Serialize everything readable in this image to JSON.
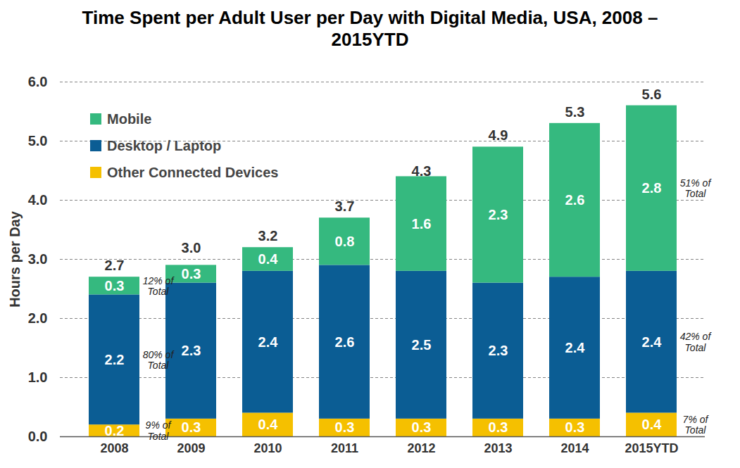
{
  "chart_data": {
    "type": "bar",
    "title": "Time Spent per Adult User per Day with Digital Media, USA, 2008 – 2015YTD",
    "y_label": "Hours per Day",
    "categories": [
      "2008",
      "2009",
      "2010",
      "2011",
      "2012",
      "2013",
      "2014",
      "2015YTD"
    ],
    "series": [
      {
        "name": "Other Connected Devices",
        "color": "#f5c000",
        "values": [
          0.2,
          0.3,
          0.4,
          0.3,
          0.3,
          0.3,
          0.3,
          0.4
        ]
      },
      {
        "name": "Desktop / Laptop",
        "color": "#0b5d94",
        "values": [
          2.2,
          2.3,
          2.4,
          2.6,
          2.5,
          2.3,
          2.4,
          2.4
        ]
      },
      {
        "name": "Mobile",
        "color": "#35b97f",
        "values": [
          0.3,
          0.3,
          0.4,
          0.8,
          1.6,
          2.3,
          2.6,
          2.8
        ]
      }
    ],
    "totals": [
      2.7,
      3.0,
      3.2,
      3.7,
      4.3,
      4.9,
      5.3,
      5.6
    ],
    "total_labels": [
      "2.7",
      "3.0",
      "3.2",
      "3.7",
      "4.3",
      "4.9",
      "5.3",
      "5.6"
    ],
    "annotations": [
      {
        "text": "12% of Total",
        "category": "2008",
        "series": "Mobile"
      },
      {
        "text": "80% of Total",
        "category": "2008",
        "series": "Desktop / Laptop"
      },
      {
        "text": "9% of Total",
        "category": "2008",
        "series": "Other Connected Devices"
      },
      {
        "text": "51% of Total",
        "category": "2015YTD",
        "series": "Mobile"
      },
      {
        "text": "42% of Total",
        "category": "2015YTD",
        "series": "Desktop / Laptop"
      },
      {
        "text": "7% of Total",
        "category": "2015YTD",
        "series": "Other Connected Devices"
      }
    ],
    "ylim": [
      0,
      6
    ],
    "yticks": [
      0,
      1,
      2,
      3,
      4,
      5,
      6
    ],
    "grid": true,
    "stacked": true,
    "data_labels": true,
    "legend": "top-left"
  }
}
